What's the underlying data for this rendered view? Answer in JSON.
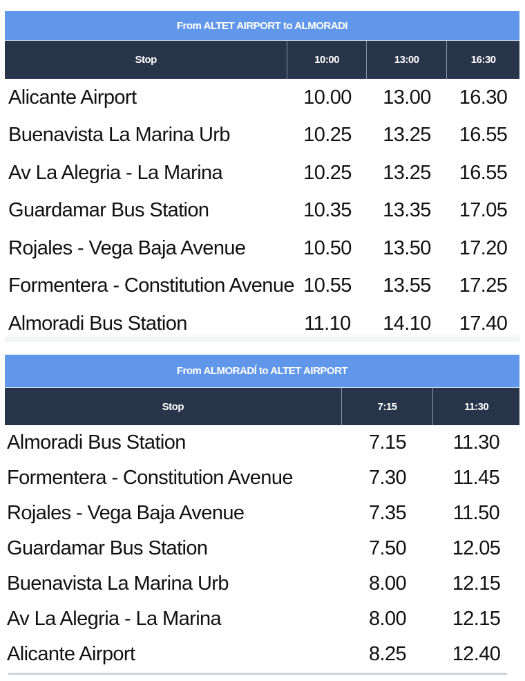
{
  "outbound": {
    "title": "From ALTET AIRPORT to ALMORADI",
    "headers": [
      "Stop",
      "10:00",
      "13:00",
      "16:30"
    ],
    "rows": [
      [
        "Alicante Airport",
        "10.00",
        "13.00",
        "16.30"
      ],
      [
        "Buenavista La Marina Urb",
        "10.25",
        "13.25",
        "16.55"
      ],
      [
        "Av La Alegria - La Marina",
        "10.25",
        "13.25",
        "16.55"
      ],
      [
        "Guardamar Bus Station",
        "10.35",
        "13.35",
        "17.05"
      ],
      [
        "Rojales - Vega Baja Avenue",
        "10.50",
        "13.50",
        "17.20"
      ],
      [
        "Formentera - Constitution Avenue",
        "10.55",
        "13.55",
        "17.25"
      ],
      [
        "Almoradi Bus Station",
        "11.10",
        "14.10",
        "17.40"
      ]
    ]
  },
  "inbound": {
    "title": "From ALMORADÍ to ALTET AIRPORT",
    "headers": [
      "Stop",
      "7:15",
      "11:30"
    ],
    "rows": [
      [
        "Almoradi Bus Station",
        "7.15",
        "11.30"
      ],
      [
        "Formentera - Constitution Avenue",
        "7.30",
        "11.45"
      ],
      [
        "Rojales - Vega Baja Avenue",
        "7.35",
        "11.50"
      ],
      [
        "Guardamar Bus Station",
        "7.50",
        "12.05"
      ],
      [
        "Buenavista La Marina Urb",
        "8.00",
        "12.15"
      ],
      [
        "Av La Alegria - La Marina",
        "8.00",
        "12.15"
      ],
      [
        "Alicante Airport",
        "8.25",
        "12.40"
      ]
    ]
  },
  "colors": {
    "caption": "#6197ea",
    "header": "#27344a"
  }
}
